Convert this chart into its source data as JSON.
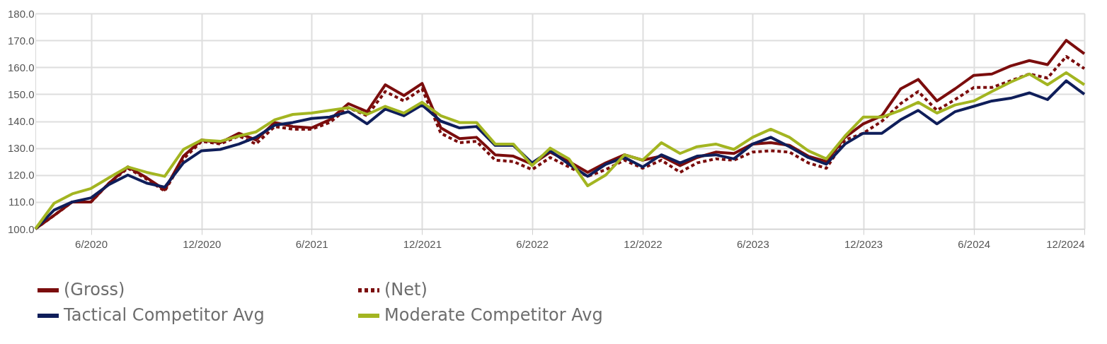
{
  "chart_data": {
    "type": "line",
    "x": [
      "2020-03",
      "2020-04",
      "2020-05",
      "2020-06",
      "2020-07",
      "2020-08",
      "2020-09",
      "2020-10",
      "2020-11",
      "2020-12",
      "2021-01",
      "2021-02",
      "2021-03",
      "2021-04",
      "2021-05",
      "2021-06",
      "2021-07",
      "2021-08",
      "2021-09",
      "2021-10",
      "2021-11",
      "2021-12",
      "2022-01",
      "2022-02",
      "2022-03",
      "2022-04",
      "2022-05",
      "2022-06",
      "2022-07",
      "2022-08",
      "2022-09",
      "2022-10",
      "2022-11",
      "2022-12",
      "2023-01",
      "2023-02",
      "2023-03",
      "2023-04",
      "2023-05",
      "2023-06",
      "2023-07",
      "2023-08",
      "2023-09",
      "2023-10",
      "2023-11",
      "2023-12",
      "2024-01",
      "2024-02",
      "2024-03",
      "2024-04",
      "2024-05",
      "2024-06",
      "2024-07",
      "2024-08",
      "2024-09",
      "2024-10",
      "2024-11",
      "2024-12"
    ],
    "series": [
      {
        "name": "(Gross)",
        "color": "#7b0d0d",
        "line_style": "solid",
        "values": [
          100,
          105,
          110,
          110,
          117,
          123,
          119,
          114.5,
          127,
          133,
          132,
          135.5,
          133,
          139.5,
          138,
          137.5,
          140.5,
          146.5,
          143.5,
          153.5,
          149.5,
          154,
          137.5,
          133.5,
          134,
          127.5,
          127,
          124,
          128.5,
          125,
          121,
          124.5,
          127.5,
          125.5,
          127,
          123.5,
          126.5,
          128.5,
          128,
          131.5,
          132,
          131,
          127,
          125,
          134,
          139,
          142,
          152,
          155.5,
          147.5,
          152,
          157,
          157.5,
          160.5,
          162.5,
          161,
          170,
          165
        ]
      },
      {
        "name": "(Net)",
        "color": "#7b0d0d",
        "line_style": "dashed",
        "values": [
          100,
          105,
          110,
          110,
          117,
          122.5,
          118.5,
          114,
          126,
          132.5,
          131.5,
          134.5,
          131.5,
          138,
          137,
          137,
          139.5,
          145,
          142,
          151,
          147.5,
          152,
          135.5,
          132,
          132.5,
          125.5,
          125,
          122,
          126.5,
          123,
          119.5,
          122,
          125.5,
          122.5,
          125.5,
          121,
          124.5,
          126,
          125.5,
          128.5,
          129,
          128.5,
          124.5,
          122.5,
          133,
          135.5,
          140,
          146.5,
          151,
          144,
          148,
          152.5,
          152.5,
          155,
          157.5,
          156,
          164,
          159.5
        ]
      },
      {
        "name": "Tactical Competitor Avg",
        "color": "#0f1e5a",
        "line_style": "solid",
        "values": [
          100,
          107,
          110,
          111.5,
          116.5,
          120,
          117,
          115.5,
          124.5,
          129,
          129.5,
          131.5,
          134,
          138.5,
          139.5,
          141,
          141.5,
          143.5,
          139,
          144.5,
          142,
          146,
          140,
          137.5,
          138,
          131,
          131,
          124.5,
          129,
          124,
          119.5,
          124,
          126.5,
          123,
          127.5,
          124.5,
          127,
          127.5,
          126,
          131.5,
          134,
          130.5,
          126.5,
          124,
          131.5,
          135.5,
          135.5,
          140.5,
          144,
          139,
          143.5,
          145.5,
          147.5,
          148.5,
          150.5,
          148,
          155,
          150
        ]
      },
      {
        "name": "Moderate Competitor Avg",
        "color": "#a3b521",
        "line_style": "solid",
        "values": [
          100,
          109.5,
          113,
          115,
          119,
          123,
          121,
          119.5,
          129.5,
          133,
          132.5,
          134.5,
          136,
          140.5,
          142.5,
          143,
          144,
          145,
          142.5,
          145.5,
          143,
          147,
          142,
          139.5,
          139.5,
          131.5,
          131.5,
          123.5,
          130,
          126,
          116,
          120,
          127.5,
          125.5,
          132,
          128,
          130.5,
          131.5,
          129.5,
          134,
          137,
          134,
          129,
          126,
          134.5,
          141.5,
          141.5,
          144,
          147,
          143,
          146,
          147.5,
          151,
          154.5,
          157.5,
          153.5,
          158,
          153.5
        ]
      }
    ],
    "xlim": [
      "2020-03",
      "2024-12"
    ],
    "xticks": [
      {
        "value": "2020-06",
        "label": "6/2020"
      },
      {
        "value": "2020-12",
        "label": "12/2020"
      },
      {
        "value": "2021-06",
        "label": "6/2021"
      },
      {
        "value": "2021-12",
        "label": "12/2021"
      },
      {
        "value": "2022-06",
        "label": "6/2022"
      },
      {
        "value": "2022-12",
        "label": "12/2022"
      },
      {
        "value": "2023-06",
        "label": "6/2023"
      },
      {
        "value": "2023-12",
        "label": "12/2023"
      },
      {
        "value": "2024-06",
        "label": "6/2024"
      },
      {
        "value": "2024-12",
        "label": "12/2024"
      }
    ],
    "ylim": [
      100,
      180
    ],
    "yticks": [
      {
        "value": 100,
        "label": "100.0"
      },
      {
        "value": 110,
        "label": "110.0"
      },
      {
        "value": 120,
        "label": "120.0"
      },
      {
        "value": 130,
        "label": "130.0"
      },
      {
        "value": 140,
        "label": "140.0"
      },
      {
        "value": 150,
        "label": "150.0"
      },
      {
        "value": 160,
        "label": "160.0"
      },
      {
        "value": 170,
        "label": "170.0"
      },
      {
        "value": 180,
        "label": "180.0"
      }
    ],
    "grid": true,
    "legend": "bottom"
  }
}
